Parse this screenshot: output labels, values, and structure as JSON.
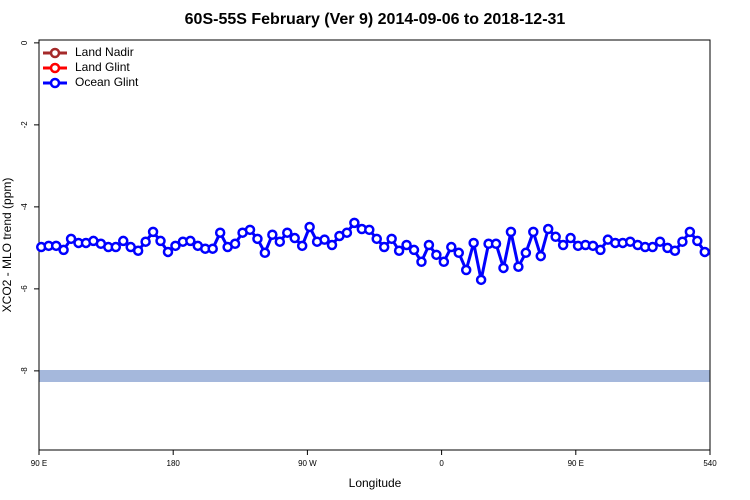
{
  "chart_data": {
    "type": "line",
    "title": "60S-55S February (Ver 9)   2014-09-06 to 2018-12-31",
    "x_label": "Longitude",
    "y_label": "XCO2 - MLO trend (ppm)",
    "xlim": [
      90,
      540
    ],
    "ylim": [
      -9.93,
      0.07
    ],
    "xticks": [
      {
        "value": 90,
        "label": "90 E"
      },
      180,
      {
        "value": 270,
        "label": "90 W"
      },
      {
        "value": 360,
        "label": "0"
      },
      {
        "value": 450,
        "label": "90 E"
      },
      540
    ],
    "yticks": [
      0,
      -2,
      -4,
      -6,
      -8
    ],
    "legend": "top-left",
    "x": [
      91.5,
      96.5,
      101.5,
      106.5,
      111.5,
      116.5,
      121.5,
      126.5,
      131.5,
      136.5,
      141.5,
      146.5,
      151.5,
      156.5,
      161.5,
      166.5,
      171.5,
      176.5,
      181.5,
      186.5,
      191.5,
      196.5,
      201.5,
      206.5,
      211.5,
      216.5,
      221.5,
      226.5,
      231.5,
      236.5,
      241.5,
      246.5,
      251.5,
      256.5,
      261.5,
      266.5,
      271.5,
      276.5,
      281.5,
      286.5,
      291.5,
      296.5,
      301.5,
      306.5,
      311.5,
      316.5,
      321.5,
      326.5,
      331.5,
      336.5,
      341.5,
      346.5,
      351.5,
      356.5,
      361.5,
      366.5,
      371.5,
      376.5,
      381.5,
      386.5,
      391.5,
      396.5,
      401.5,
      406.5,
      411.5,
      416.5,
      421.5,
      426.5,
      431.5,
      436.5,
      441.5,
      446.5,
      451.5,
      456.5,
      461.5,
      466.5,
      471.5,
      476.5,
      481.5,
      486.5,
      491.5,
      496.5,
      501.5,
      506.5,
      511.5,
      516.5,
      521.5,
      526.5,
      531.5,
      536.5
    ],
    "series": [
      {
        "name": "Land Nadir",
        "color": "#a52a2a",
        "values": [
          null,
          null,
          null,
          null,
          null,
          null,
          null,
          null,
          null,
          null,
          null,
          null,
          null,
          null,
          null,
          null,
          null,
          null,
          null,
          null,
          null,
          null,
          null,
          null,
          null,
          null,
          null,
          null,
          null,
          null,
          null,
          null,
          null,
          null,
          null,
          null,
          null,
          null,
          null,
          null,
          null,
          null,
          null,
          null,
          null,
          null,
          null,
          null,
          null,
          null,
          null,
          null,
          null,
          null,
          null,
          null,
          null,
          null,
          null,
          null,
          null,
          null,
          null,
          null,
          null,
          null,
          null,
          null,
          null,
          null,
          null,
          null,
          null,
          null,
          null,
          null,
          null,
          null,
          null,
          null,
          null,
          null,
          null,
          null,
          null,
          null,
          null,
          null,
          null,
          null
        ]
      },
      {
        "name": "Land Glint",
        "color": "#ff0000",
        "values": [
          null,
          null,
          null,
          null,
          null,
          null,
          null,
          null,
          null,
          null,
          null,
          null,
          null,
          null,
          null,
          null,
          null,
          null,
          null,
          null,
          null,
          null,
          null,
          null,
          null,
          null,
          null,
          null,
          null,
          null,
          null,
          null,
          null,
          null,
          null,
          null,
          null,
          null,
          null,
          null,
          null,
          null,
          null,
          null,
          null,
          null,
          null,
          null,
          null,
          null,
          null,
          null,
          null,
          null,
          null,
          null,
          null,
          null,
          null,
          null,
          null,
          null,
          null,
          null,
          null,
          null,
          null,
          null,
          null,
          null,
          null,
          null,
          null,
          null,
          null,
          null,
          null,
          null,
          null,
          null,
          null,
          null,
          null,
          null,
          null,
          null,
          null,
          null,
          null,
          null
        ]
      },
      {
        "name": "Ocean Glint",
        "color": "#0000ff",
        "values": [
          -4.98,
          -4.95,
          -4.95,
          -5.05,
          -4.78,
          -4.88,
          -4.88,
          -4.83,
          -4.9,
          -4.98,
          -4.98,
          -4.83,
          -4.98,
          -5.07,
          -4.85,
          -4.61,
          -4.83,
          -5.1,
          -4.95,
          -4.85,
          -4.83,
          -4.95,
          -5.02,
          -5.02,
          -4.63,
          -4.98,
          -4.9,
          -4.63,
          -4.56,
          -4.78,
          -5.12,
          -4.68,
          -4.85,
          -4.63,
          -4.76,
          -4.95,
          -4.49,
          -4.85,
          -4.8,
          -4.93,
          -4.71,
          -4.63,
          -4.39,
          -4.54,
          -4.56,
          -4.78,
          -4.98,
          -4.78,
          -5.07,
          -4.93,
          -5.05,
          -5.34,
          -4.93,
          -5.17,
          -5.34,
          -4.98,
          -5.12,
          -5.54,
          -4.88,
          -5.78,
          -4.9,
          -4.9,
          -5.49,
          -4.61,
          -5.46,
          -5.12,
          -4.61,
          -5.2,
          -4.54,
          -4.73,
          -4.93,
          -4.76,
          -4.95,
          -4.93,
          -4.95,
          -5.05,
          -4.8,
          -4.88,
          -4.88,
          -4.85,
          -4.93,
          -4.98,
          -4.98,
          -4.85,
          -5.0,
          -5.07,
          -4.85,
          -4.61,
          -4.83,
          -5.1
        ]
      }
    ]
  }
}
